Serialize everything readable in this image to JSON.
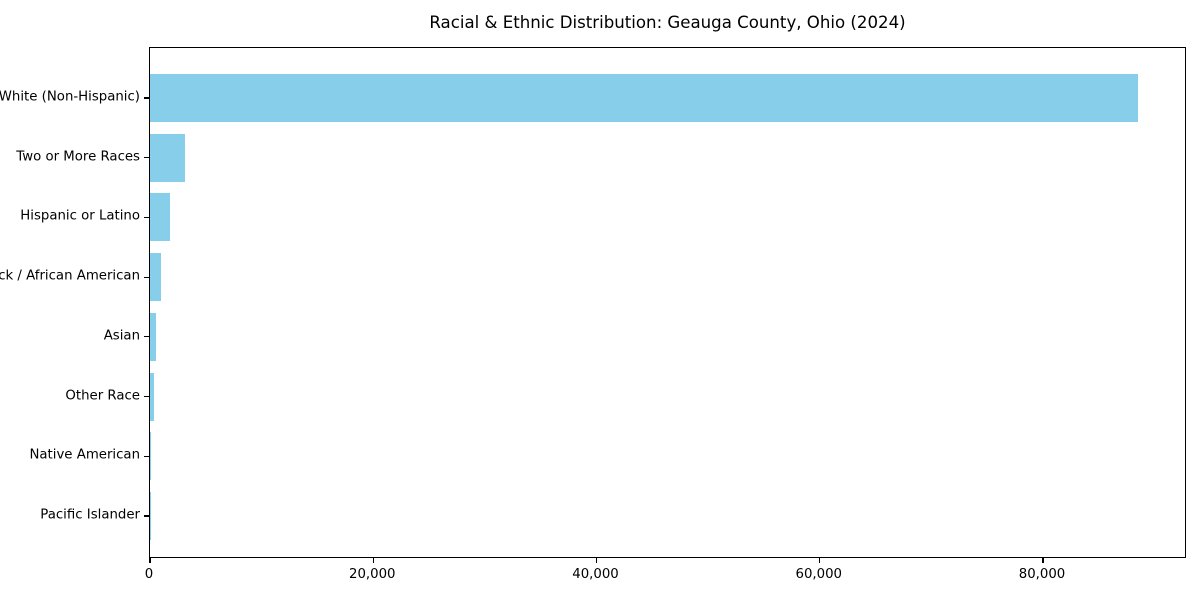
{
  "chart_data": {
    "type": "bar",
    "orientation": "horizontal",
    "title": "Racial & Ethnic Distribution: Geauga County, Ohio (2024)",
    "categories": [
      "White (Non-Hispanic)",
      "Two or More Races",
      "Hispanic or Latino",
      "Black / African American",
      "Asian",
      "Other Race",
      "Native American",
      "Pacific Islander"
    ],
    "values": [
      88500,
      3150,
      1800,
      1000,
      540,
      350,
      70,
      20
    ],
    "bar_color": "#87CEEB",
    "text_color": "#000000",
    "xlabel": "",
    "ylabel": "",
    "xlim": [
      0,
      92900
    ],
    "x_ticks": [
      0,
      20000,
      40000,
      60000,
      80000
    ],
    "x_tick_labels": [
      "0",
      "20,000",
      "40,000",
      "60,000",
      "80,000"
    ],
    "grid": false,
    "legend": null,
    "background": "#ffffff"
  }
}
